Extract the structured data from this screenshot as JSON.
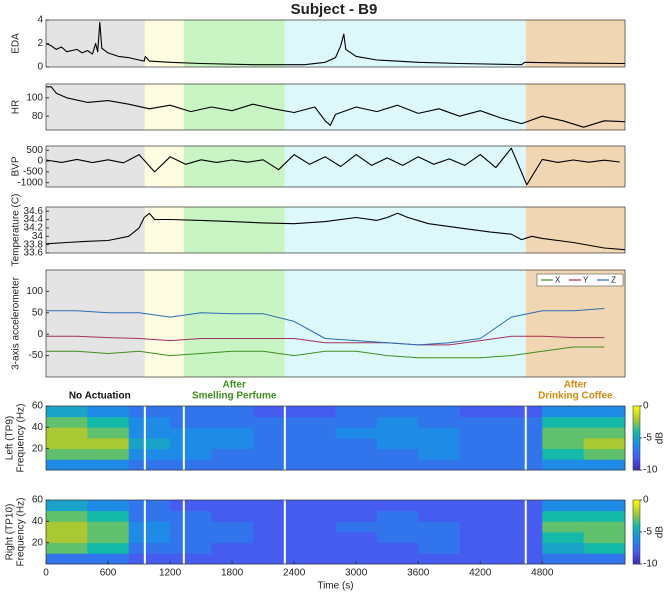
{
  "title": "Subject - B9",
  "regions": [
    {
      "start": 0,
      "end": 956,
      "color": "#e4e4e4"
    },
    {
      "start": 956,
      "end": 1333,
      "color": "#fdfbe0"
    },
    {
      "start": 1333,
      "end": 2310,
      "color": "#c9f5c4"
    },
    {
      "start": 2310,
      "end": 4640,
      "color": "#ddf8fb"
    },
    {
      "start": 4640,
      "end": 5600,
      "color": "#f0d6b2"
    }
  ],
  "annotations": [
    {
      "lines": [
        "No Actuation"
      ],
      "x": 520,
      "color": "#111111"
    },
    {
      "lines": [
        "After",
        "Smelling Perfume"
      ],
      "x": 1820,
      "color": "#3f8f1f"
    },
    {
      "lines": [
        "After",
        "Drinking Coffee"
      ],
      "x": 5120,
      "color": "#d4880f"
    }
  ],
  "chart_data": [
    {
      "type": "line",
      "ylabel": "EDA",
      "xlim": [
        0,
        5600
      ],
      "ylim": [
        0,
        4
      ],
      "yticks": [
        0,
        2,
        4
      ],
      "x": [
        0,
        50,
        100,
        150,
        200,
        300,
        350,
        400,
        450,
        480,
        500,
        520,
        540,
        600,
        700,
        800,
        900,
        950,
        960,
        1000,
        1200,
        1500,
        2000,
        2300,
        2500,
        2700,
        2800,
        2850,
        2880,
        2900,
        3000,
        3200,
        3600,
        4000,
        4600,
        4630,
        5000,
        5600
      ],
      "series": [
        {
          "color": "#000000",
          "values": [
            2.0,
            1.8,
            1.5,
            1.7,
            1.3,
            1.5,
            1.2,
            1.4,
            1.1,
            2.0,
            1.3,
            3.8,
            1.6,
            1.2,
            0.9,
            0.8,
            0.6,
            0.5,
            0.9,
            0.5,
            0.4,
            0.3,
            0.2,
            0.2,
            0.2,
            0.4,
            0.8,
            1.8,
            2.8,
            1.5,
            0.9,
            0.6,
            0.4,
            0.3,
            0.2,
            0.4,
            0.35,
            0.3
          ]
        }
      ]
    },
    {
      "type": "line",
      "ylabel": "HR",
      "xlim": [
        0,
        5600
      ],
      "ylim": [
        65,
        115
      ],
      "yticks": [
        80,
        100
      ],
      "x": [
        0,
        50,
        100,
        200,
        400,
        600,
        800,
        1000,
        1200,
        1400,
        1600,
        1800,
        2000,
        2200,
        2400,
        2600,
        2700,
        2750,
        2800,
        3000,
        3200,
        3400,
        3600,
        3800,
        4000,
        4200,
        4400,
        4600,
        4800,
        5000,
        5200,
        5400,
        5600
      ],
      "series": [
        {
          "color": "#000000",
          "values": [
            112,
            112,
            105,
            100,
            95,
            97,
            93,
            88,
            92,
            85,
            90,
            86,
            93,
            88,
            84,
            90,
            75,
            70,
            82,
            90,
            85,
            92,
            83,
            88,
            80,
            86,
            78,
            72,
            80,
            75,
            68,
            75,
            74
          ]
        }
      ]
    },
    {
      "type": "line",
      "ylabel": "BVP",
      "xlim": [
        0,
        5600
      ],
      "ylim": [
        -1200,
        700
      ],
      "yticks": [
        500,
        0,
        -500,
        -1000
      ],
      "x": [
        0,
        150,
        300,
        450,
        600,
        750,
        900,
        1050,
        1200,
        1350,
        1500,
        1650,
        1800,
        1950,
        2100,
        2250,
        2400,
        2550,
        2700,
        2850,
        3000,
        3150,
        3300,
        3450,
        3600,
        3750,
        3900,
        4050,
        4200,
        4350,
        4500,
        4650,
        4800,
        4950,
        5100,
        5250,
        5400,
        5550
      ],
      "series": [
        {
          "color": "#000000",
          "values": [
            50,
            -60,
            80,
            -70,
            60,
            -80,
            300,
            -500,
            200,
            -150,
            60,
            -60,
            50,
            -50,
            60,
            -400,
            300,
            -150,
            200,
            -250,
            300,
            -200,
            150,
            -200,
            200,
            -150,
            100,
            -200,
            300,
            -300,
            600,
            -1100,
            80,
            -60,
            50,
            -50,
            40,
            -40
          ]
        }
      ]
    },
    {
      "type": "line",
      "ylabel": "Temperature (C)",
      "xlim": [
        0,
        5600
      ],
      "ylim": [
        33.6,
        34.7
      ],
      "yticks": [
        33.6,
        33.8,
        34,
        34.2,
        34.4,
        34.6
      ],
      "x": [
        0,
        200,
        400,
        600,
        800,
        900,
        950,
        1000,
        1050,
        1200,
        1500,
        1800,
        2100,
        2400,
        2700,
        3000,
        3200,
        3300,
        3400,
        3500,
        3700,
        4000,
        4300,
        4500,
        4600,
        4700,
        4800,
        5100,
        5400,
        5600
      ],
      "series": [
        {
          "color": "#000000",
          "values": [
            33.82,
            33.85,
            33.88,
            33.9,
            34.0,
            34.2,
            34.45,
            34.55,
            34.4,
            34.4,
            34.38,
            34.35,
            34.32,
            34.3,
            34.35,
            34.45,
            34.38,
            34.45,
            34.55,
            34.45,
            34.3,
            34.2,
            34.1,
            34.05,
            33.92,
            34.0,
            33.95,
            33.85,
            33.72,
            33.68
          ]
        }
      ]
    },
    {
      "type": "line",
      "ylabel": "3-axis accelerometer",
      "xlim": [
        0,
        5600
      ],
      "ylim": [
        -100,
        150
      ],
      "yticks": [
        -50,
        0,
        50,
        100
      ],
      "legend": "top-right",
      "x": [
        0,
        300,
        600,
        900,
        1200,
        1500,
        1800,
        2100,
        2400,
        2700,
        3000,
        3300,
        3600,
        3900,
        4200,
        4500,
        4800,
        5100,
        5400
      ],
      "series": [
        {
          "name": "X",
          "color": "#3f8f1f",
          "values": [
            -40,
            -40,
            -45,
            -40,
            -50,
            -45,
            -40,
            -40,
            -50,
            -40,
            -40,
            -50,
            -55,
            -55,
            -55,
            -50,
            -40,
            -30,
            -30
          ]
        },
        {
          "name": "Y",
          "color": "#a3305a",
          "values": [
            -5,
            -5,
            -8,
            -10,
            -15,
            -10,
            -10,
            -10,
            -10,
            -20,
            -20,
            -20,
            -25,
            -25,
            -15,
            -5,
            -5,
            -8,
            -8
          ]
        },
        {
          "name": "Z",
          "color": "#2c6cb4",
          "values": [
            55,
            55,
            50,
            50,
            40,
            50,
            48,
            48,
            30,
            -10,
            -15,
            -20,
            -25,
            -20,
            -10,
            40,
            55,
            55,
            60
          ]
        }
      ]
    },
    {
      "type": "heatmap",
      "ylabel": [
        "Left  (TP9)",
        "Frequency (Hz)"
      ],
      "xlim": [
        0,
        5600
      ],
      "ylim": [
        0,
        60
      ],
      "yticks": [
        20,
        40,
        60
      ],
      "clim": [
        -10,
        0
      ],
      "cticks": [
        0,
        -5,
        -10
      ],
      "clabel": "dB",
      "colormap": "parula",
      "xbins": [
        0,
        400,
        800,
        1200,
        1600,
        2000,
        2400,
        2800,
        3200,
        3600,
        4000,
        4400,
        4800,
        5200,
        5600
      ],
      "ybins": [
        0,
        10,
        20,
        30,
        40,
        50,
        60
      ],
      "z": [
        [
          -6,
          -6,
          -7,
          -7,
          -7,
          -7,
          -7,
          -7,
          -7,
          -7,
          -7,
          -7,
          -6,
          -6
        ],
        [
          -3,
          -3,
          -6,
          -6,
          -7,
          -7,
          -7,
          -7,
          -7,
          -6,
          -7,
          -7,
          -4,
          -3
        ],
        [
          -2,
          -2,
          -5,
          -6,
          -6,
          -7,
          -7,
          -7,
          -6,
          -6,
          -7,
          -7,
          -3,
          -2
        ],
        [
          -2,
          -3,
          -6,
          -6,
          -6,
          -7,
          -7,
          -6,
          -6,
          -6,
          -7,
          -7,
          -3,
          -3
        ],
        [
          -3,
          -4,
          -6,
          -7,
          -7,
          -7,
          -7,
          -7,
          -6,
          -7,
          -7,
          -7,
          -4,
          -4
        ],
        [
          -5,
          -6,
          -7,
          -7,
          -7,
          -8,
          -8,
          -7,
          -7,
          -7,
          -8,
          -8,
          -6,
          -6
        ]
      ]
    },
    {
      "type": "heatmap",
      "ylabel": [
        "Right (TP10)",
        "Frequency (Hz)"
      ],
      "xlim": [
        0,
        5600
      ],
      "ylim": [
        0,
        60
      ],
      "yticks": [
        20,
        40,
        60
      ],
      "clim": [
        -10,
        0
      ],
      "cticks": [
        0,
        -5,
        -10
      ],
      "clabel": "dB",
      "colormap": "parula",
      "xlabel": "Time (s)",
      "xticks": [
        0,
        600,
        1200,
        1800,
        2400,
        3000,
        3600,
        4200,
        4800
      ],
      "xbins": [
        0,
        400,
        800,
        1200,
        1600,
        2000,
        2400,
        2800,
        3200,
        3600,
        4000,
        4400,
        4800,
        5200,
        5600
      ],
      "ybins": [
        0,
        10,
        20,
        30,
        40,
        50,
        60
      ],
      "z": [
        [
          -7,
          -7,
          -8,
          -8,
          -8,
          -8,
          -8,
          -8,
          -8,
          -8,
          -8,
          -8,
          -7,
          -7
        ],
        [
          -3,
          -4,
          -7,
          -7,
          -8,
          -8,
          -8,
          -8,
          -8,
          -7,
          -8,
          -8,
          -5,
          -4
        ],
        [
          -2,
          -3,
          -6,
          -7,
          -7,
          -8,
          -8,
          -8,
          -7,
          -7,
          -8,
          -8,
          -4,
          -3
        ],
        [
          -2,
          -3,
          -6,
          -7,
          -7,
          -8,
          -8,
          -7,
          -7,
          -7,
          -8,
          -8,
          -3,
          -3
        ],
        [
          -3,
          -4,
          -7,
          -7,
          -8,
          -8,
          -8,
          -8,
          -7,
          -8,
          -8,
          -8,
          -4,
          -4
        ],
        [
          -5,
          -6,
          -7,
          -8,
          -8,
          -8,
          -8,
          -8,
          -8,
          -8,
          -8,
          -8,
          -6,
          -6
        ]
      ]
    }
  ]
}
